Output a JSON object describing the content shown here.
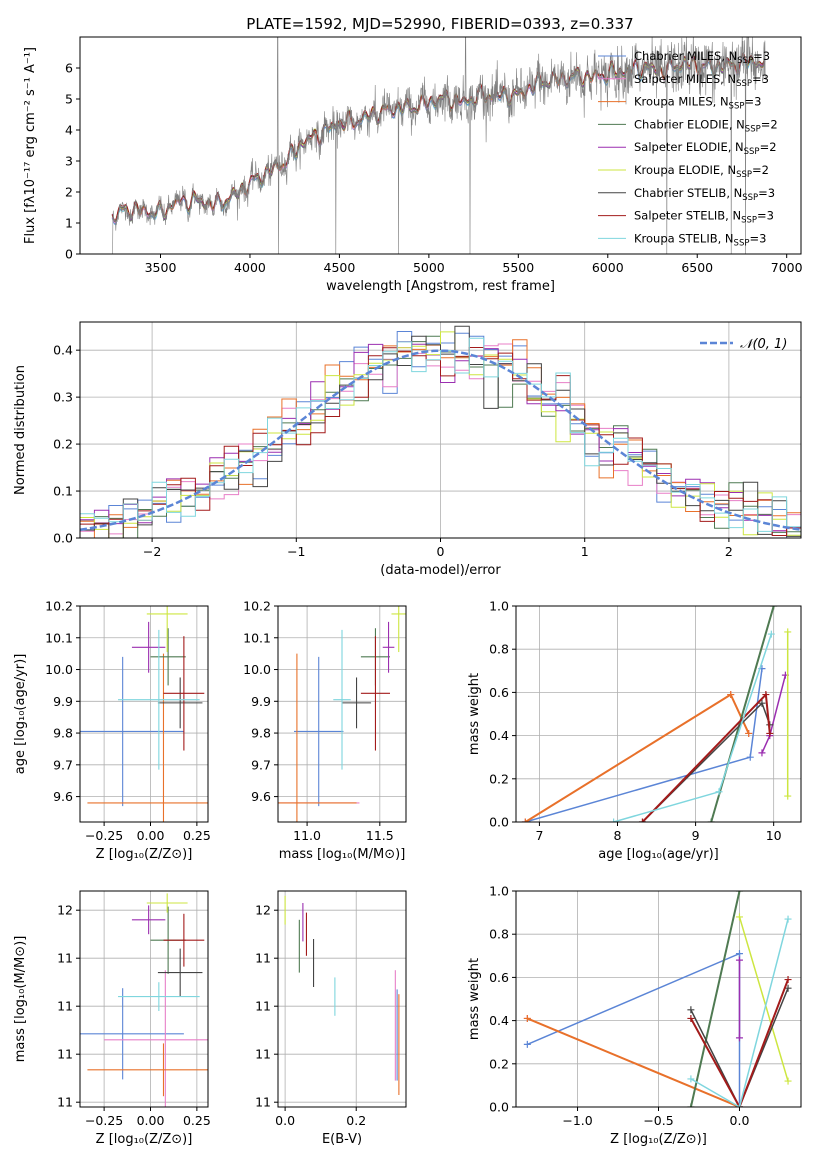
{
  "figure_title": "PLATE=1592, MJD=52990, FIBERID=0393, z=0.337",
  "colors": {
    "chabrier_miles": "#5b85d6",
    "salpeter_miles": "#e87fc7",
    "kroupa_miles": "#e8712a",
    "chabrier_elodie": "#4f7a52",
    "salpeter_elodie": "#9b2fb0",
    "kroupa_elodie": "#cde640",
    "chabrier_stelib": "#444444",
    "salpeter_stelib": "#a31b1b",
    "kroupa_stelib": "#7fd6de",
    "data": "#808080",
    "gaussian": "#5b85d6"
  },
  "legend_models": [
    {
      "key": "chabrier_miles",
      "label": "Chabrier MILES, N",
      "sub": "SSP",
      "eq": "=3"
    },
    {
      "key": "salpeter_miles",
      "label": "Salpeter MILES, N",
      "sub": "SSP",
      "eq": "=3"
    },
    {
      "key": "kroupa_miles",
      "label": "Kroupa MILES, N",
      "sub": "SSP",
      "eq": "=3"
    },
    {
      "key": "chabrier_elodie",
      "label": "Chabrier ELODIE, N",
      "sub": "SSP",
      "eq": "=2"
    },
    {
      "key": "salpeter_elodie",
      "label": "Salpeter ELODIE, N",
      "sub": "SSP",
      "eq": "=2"
    },
    {
      "key": "kroupa_elodie",
      "label": "Kroupa ELODIE, N",
      "sub": "SSP",
      "eq": "=2"
    },
    {
      "key": "chabrier_stelib",
      "label": "Chabrier STELIB, N",
      "sub": "SSP",
      "eq": "=3"
    },
    {
      "key": "salpeter_stelib",
      "label": "Salpeter STELIB, N",
      "sub": "SSP",
      "eq": "=3"
    },
    {
      "key": "kroupa_stelib",
      "label": "Kroupa STELIB, N",
      "sub": "SSP",
      "eq": "=3"
    }
  ],
  "chart_data": [
    {
      "id": "spectrum",
      "type": "line",
      "title": "PLATE=1592, MJD=52990, FIBERID=0393, z=0.337",
      "xlabel": "wavelength [Angstrom, rest frame]",
      "ylabel": "Flux [fλ10⁻¹⁷ erg cm⁻² s⁻¹ A⁻¹]",
      "xlim": [
        3050,
        7080
      ],
      "ylim": [
        0,
        7
      ],
      "xticks": [
        3500,
        4000,
        4500,
        5000,
        5500,
        6000,
        6500,
        7000
      ],
      "yticks": [
        0,
        1,
        2,
        3,
        4,
        5,
        6
      ],
      "grid": false,
      "legend_position": "top-right",
      "continuum_points": [
        [
          3230,
          1.2
        ],
        [
          3300,
          1.4
        ],
        [
          3400,
          1.4
        ],
        [
          3500,
          1.3
        ],
        [
          3600,
          1.7
        ],
        [
          3700,
          1.7
        ],
        [
          3800,
          1.6
        ],
        [
          3900,
          1.8
        ],
        [
          4000,
          2.3
        ],
        [
          4100,
          2.6
        ],
        [
          4200,
          3.0
        ],
        [
          4300,
          3.6
        ],
        [
          4400,
          3.9
        ],
        [
          4500,
          4.2
        ],
        [
          4600,
          4.3
        ],
        [
          4700,
          4.5
        ],
        [
          4800,
          4.7
        ],
        [
          4900,
          4.7
        ],
        [
          5000,
          4.9
        ],
        [
          5100,
          5.0
        ],
        [
          5200,
          4.9
        ],
        [
          5300,
          5.1
        ],
        [
          5400,
          5.1
        ],
        [
          5500,
          5.1
        ],
        [
          5600,
          5.5
        ],
        [
          5700,
          5.6
        ],
        [
          5800,
          5.7
        ],
        [
          5900,
          5.7
        ],
        [
          6000,
          5.8
        ],
        [
          6100,
          5.9
        ],
        [
          6200,
          6.0
        ],
        [
          6300,
          5.9
        ],
        [
          6400,
          6.1
        ],
        [
          6500,
          6.1
        ],
        [
          6600,
          6.0
        ],
        [
          6700,
          6.1
        ],
        [
          6800,
          6.2
        ],
        [
          6880,
          6.1
        ]
      ]
    },
    {
      "id": "residuals",
      "type": "histogram",
      "xlabel": "(data-model)/error",
      "ylabel": "Normed distribution",
      "xlim": [
        -2.5,
        2.5
      ],
      "ylim": [
        0,
        0.46
      ],
      "xticks": [
        -2,
        -1,
        0,
        1,
        2
      ],
      "yticks": [
        0.0,
        0.1,
        0.2,
        0.3,
        0.4
      ],
      "grid": true,
      "legend_position": "top-right",
      "reference_curve": {
        "name": "𝒩(0, 1)",
        "mean": 0,
        "sigma": 1
      },
      "bin_width": 0.1
    },
    {
      "id": "age_vs_z",
      "type": "errorbar",
      "xlabel": "Z [log₁₀(Z/Z⊙)]",
      "ylabel": "age  [log₁₀(age/yr)]",
      "xlim": [
        -0.38,
        0.31
      ],
      "ylim": [
        9.52,
        10.2
      ],
      "xticks": [
        -0.25,
        0.0,
        0.25
      ],
      "xticklabels": [
        "−0.25",
        "0.00",
        "0.25"
      ],
      "yticks": [
        9.6,
        9.7,
        9.8,
        9.9,
        10.0,
        10.1,
        10.2
      ],
      "grid": true,
      "points": [
        {
          "key": "chabrier_miles",
          "x": -0.15,
          "xerr": 0.33,
          "y": 9.805,
          "yerr": 0.235
        },
        {
          "key": "salpeter_miles",
          "x": 0.08,
          "xerr": 0.0,
          "y": 9.58,
          "yerr": 0.0
        },
        {
          "key": "kroupa_miles",
          "x": 0.07,
          "xerr": 0.41,
          "y": 9.58,
          "yerr": 0.47
        },
        {
          "key": "chabrier_elodie",
          "x": 0.095,
          "xerr": 0.095,
          "y": 10.04,
          "yerr": 0.09
        },
        {
          "key": "salpeter_elodie",
          "x": -0.01,
          "xerr": 0.09,
          "y": 10.07,
          "yerr": 0.08
        },
        {
          "key": "kroupa_elodie",
          "x": 0.09,
          "xerr": 0.11,
          "y": 10.175,
          "yerr": 0.12
        },
        {
          "key": "chabrier_stelib",
          "x": 0.16,
          "xerr": 0.12,
          "y": 9.895,
          "yerr": 0.08
        },
        {
          "key": "salpeter_stelib",
          "x": 0.18,
          "xerr": 0.11,
          "y": 9.925,
          "yerr": 0.18
        },
        {
          "key": "kroupa_stelib",
          "x": 0.045,
          "xerr": 0.22,
          "y": 9.905,
          "yerr": 0.22
        }
      ]
    },
    {
      "id": "age_vs_mass",
      "type": "errorbar",
      "xlabel": "mass [log₁₀(M/M⊙)]",
      "ylabel": "",
      "xlim": [
        10.8,
        11.68
      ],
      "ylim": [
        9.52,
        10.2
      ],
      "xticks": [
        11.0,
        11.5
      ],
      "xticklabels": [
        "11.0",
        "11.5"
      ],
      "yticks": [
        9.6,
        9.7,
        9.8,
        9.9,
        10.0,
        10.1,
        10.2
      ],
      "grid": true,
      "points": [
        {
          "key": "chabrier_miles",
          "x": 11.08,
          "xerr": 0.17,
          "y": 9.805,
          "yerr": 0.235
        },
        {
          "key": "salpeter_miles",
          "x": 11.07,
          "xerr": 0.29,
          "y": 9.58,
          "yerr": 0.0
        },
        {
          "key": "kroupa_miles",
          "x": 10.93,
          "xerr": 0.41,
          "y": 9.58,
          "yerr": 0.47
        },
        {
          "key": "chabrier_elodie",
          "x": 11.47,
          "xerr": 0.1,
          "y": 10.04,
          "yerr": 0.09
        },
        {
          "key": "salpeter_elodie",
          "x": 11.56,
          "xerr": 0.04,
          "y": 10.07,
          "yerr": 0.08
        },
        {
          "key": "kroupa_elodie",
          "x": 11.63,
          "xerr": 0.05,
          "y": 10.175,
          "yerr": 0.12
        },
        {
          "key": "chabrier_stelib",
          "x": 11.34,
          "xerr": 0.1,
          "y": 9.895,
          "yerr": 0.08
        },
        {
          "key": "salpeter_stelib",
          "x": 11.47,
          "xerr": 0.1,
          "y": 9.925,
          "yerr": 0.18
        },
        {
          "key": "kroupa_stelib",
          "x": 11.24,
          "xerr": 0.06,
          "y": 9.905,
          "yerr": 0.22
        }
      ]
    },
    {
      "id": "weight_vs_age",
      "type": "line",
      "xlabel": "age  [log₁₀(age/yr)]",
      "ylabel": "mass weight",
      "xlim": [
        6.7,
        10.35
      ],
      "ylim": [
        0,
        1
      ],
      "xticks": [
        7,
        8,
        9,
        10
      ],
      "yticks": [
        0.0,
        0.2,
        0.4,
        0.6,
        0.8,
        1.0
      ],
      "grid": true,
      "series": [
        {
          "key": "chabrier_miles",
          "points": [
            [
              6.82,
              0.0
            ],
            [
              9.7,
              0.3
            ],
            [
              9.85,
              0.71
            ]
          ]
        },
        {
          "key": "salpeter_miles",
          "points": [
            [
              6.82,
              0.0
            ],
            [
              9.45,
              0.59
            ],
            [
              9.68,
              0.41
            ]
          ]
        },
        {
          "key": "kroupa_miles",
          "points": [
            [
              6.82,
              0.0
            ],
            [
              9.45,
              0.59
            ],
            [
              9.68,
              0.41
            ]
          ]
        },
        {
          "key": "chabrier_elodie",
          "points": [
            [
              9.2,
              0.0
            ],
            [
              10.0,
              1.0
            ]
          ]
        },
        {
          "key": "salpeter_elodie",
          "points": [
            [
              9.85,
              0.32
            ],
            [
              9.95,
              0.4
            ],
            [
              10.15,
              0.68
            ]
          ]
        },
        {
          "key": "kroupa_elodie",
          "points": [
            [
              10.18,
              0.12
            ],
            [
              10.18,
              0.88
            ]
          ]
        },
        {
          "key": "chabrier_stelib",
          "points": [
            [
              8.32,
              0.0
            ],
            [
              9.85,
              0.55
            ],
            [
              9.95,
              0.45
            ]
          ]
        },
        {
          "key": "salpeter_stelib",
          "points": [
            [
              8.32,
              0.0
            ],
            [
              9.9,
              0.59
            ],
            [
              9.95,
              0.41
            ]
          ]
        },
        {
          "key": "kroupa_stelib",
          "points": [
            [
              7.95,
              0.0
            ],
            [
              9.3,
              0.14
            ],
            [
              9.97,
              0.87
            ]
          ]
        }
      ]
    },
    {
      "id": "mass_vs_z",
      "type": "errorbar",
      "xlabel": "Z [log₁₀(Z/Z⊙)]",
      "ylabel": "mass [log₁₀(M/M⊙)]",
      "xlim": [
        -0.38,
        0.31
      ],
      "ylim": [
        10.78,
        11.68
      ],
      "xticks": [
        -0.25,
        0.0,
        0.25
      ],
      "xticklabels": [
        "−0.25",
        "0.00",
        "0.25"
      ],
      "yticks": [
        10.8,
        11.0,
        11.2,
        11.4,
        11.6
      ],
      "grid": true,
      "points": [
        {
          "key": "chabrier_miles",
          "x": -0.15,
          "xerr": 0.33,
          "y": 11.085,
          "yerr": 0.19
        },
        {
          "key": "salpeter_miles",
          "x": 0.08,
          "xerr": 0.33,
          "y": 11.06,
          "yerr": 0.29
        },
        {
          "key": "kroupa_miles",
          "x": 0.07,
          "xerr": 0.41,
          "y": 10.935,
          "yerr": 0.11
        },
        {
          "key": "chabrier_elodie",
          "x": 0.095,
          "xerr": 0.095,
          "y": 11.475,
          "yerr": 0.14
        },
        {
          "key": "salpeter_elodie",
          "x": -0.01,
          "xerr": 0.09,
          "y": 11.56,
          "yerr": 0.06
        },
        {
          "key": "kroupa_elodie",
          "x": 0.09,
          "xerr": 0.11,
          "y": 11.63,
          "yerr": 0.04
        },
        {
          "key": "chabrier_stelib",
          "x": 0.16,
          "xerr": 0.12,
          "y": 11.34,
          "yerr": 0.1
        },
        {
          "key": "salpeter_stelib",
          "x": 0.18,
          "xerr": 0.11,
          "y": 11.475,
          "yerr": 0.11
        },
        {
          "key": "kroupa_stelib",
          "x": 0.045,
          "xerr": 0.22,
          "y": 11.24,
          "yerr": 0.06
        }
      ]
    },
    {
      "id": "mass_vs_ebv",
      "type": "errorbar",
      "xlabel": "E(B-V)",
      "ylabel": "",
      "xlim": [
        -0.02,
        0.34
      ],
      "ylim": [
        10.78,
        11.68
      ],
      "xticks": [
        0.0,
        0.2
      ],
      "xticklabels": [
        "0.0",
        "0.2"
      ],
      "yticks": [
        10.8,
        11.0,
        11.2,
        11.4,
        11.6
      ],
      "grid": true,
      "points": [
        {
          "key": "chabrier_miles",
          "x": 0.315,
          "xerr": 0.0,
          "y": 11.08,
          "yerr": 0.19
        },
        {
          "key": "salpeter_miles",
          "x": 0.31,
          "xerr": 0.0,
          "y": 11.12,
          "yerr": 0.23
        },
        {
          "key": "kroupa_miles",
          "x": 0.32,
          "xerr": 0.0,
          "y": 11.04,
          "yerr": 0.21
        },
        {
          "key": "chabrier_elodie",
          "x": 0.04,
          "xerr": 0.0,
          "y": 11.45,
          "yerr": 0.11
        },
        {
          "key": "salpeter_elodie",
          "x": 0.05,
          "xerr": 0.0,
          "y": 11.55,
          "yerr": 0.08
        },
        {
          "key": "kroupa_elodie",
          "x": 0.0,
          "xerr": 0.0,
          "y": 11.6,
          "yerr": 0.06
        },
        {
          "key": "chabrier_stelib",
          "x": 0.08,
          "xerr": 0.0,
          "y": 11.38,
          "yerr": 0.1
        },
        {
          "key": "salpeter_stelib",
          "x": 0.06,
          "xerr": 0.0,
          "y": 11.5,
          "yerr": 0.09
        },
        {
          "key": "kroupa_stelib",
          "x": 0.14,
          "xerr": 0.0,
          "y": 11.24,
          "yerr": 0.08
        }
      ]
    },
    {
      "id": "weight_vs_z",
      "type": "line",
      "xlabel": "Z [log₁₀(Z/Z⊙)]",
      "ylabel": "mass weight",
      "xlim": [
        -1.38,
        0.38
      ],
      "ylim": [
        0,
        1
      ],
      "xticks": [
        -1.0,
        -0.5,
        0.0
      ],
      "xticklabels": [
        "−1.0",
        "−0.5",
        "0.0"
      ],
      "yticks": [
        0.0,
        0.2,
        0.4,
        0.6,
        0.8,
        1.0
      ],
      "grid": true,
      "series": [
        {
          "key": "chabrier_miles",
          "points": [
            [
              -1.31,
              0.29
            ],
            [
              0.0,
              0.71
            ],
            [
              0.0,
              0.0
            ]
          ]
        },
        {
          "key": "salpeter_miles",
          "points": [
            [
              -1.31,
              0.41
            ],
            [
              0.0,
              0.0
            ]
          ]
        },
        {
          "key": "kroupa_miles",
          "points": [
            [
              -1.31,
              0.41
            ],
            [
              0.0,
              0.0
            ]
          ]
        },
        {
          "key": "chabrier_elodie",
          "points": [
            [
              -0.3,
              0.0
            ],
            [
              0.0,
              1.0
            ]
          ]
        },
        {
          "key": "salpeter_elodie",
          "points": [
            [
              0.0,
              0.32
            ],
            [
              0.0,
              0.68
            ]
          ]
        },
        {
          "key": "kroupa_elodie",
          "points": [
            [
              0.0,
              0.88
            ],
            [
              0.3,
              0.12
            ]
          ]
        },
        {
          "key": "chabrier_stelib",
          "points": [
            [
              -0.3,
              0.45
            ],
            [
              0.0,
              0.0
            ],
            [
              0.3,
              0.55
            ]
          ]
        },
        {
          "key": "salpeter_stelib",
          "points": [
            [
              -0.3,
              0.41
            ],
            [
              0.0,
              0.0
            ],
            [
              0.3,
              0.59
            ]
          ]
        },
        {
          "key": "kroupa_stelib",
          "points": [
            [
              -0.3,
              0.13
            ],
            [
              0.0,
              0.0
            ],
            [
              0.3,
              0.87
            ]
          ]
        }
      ]
    }
  ]
}
